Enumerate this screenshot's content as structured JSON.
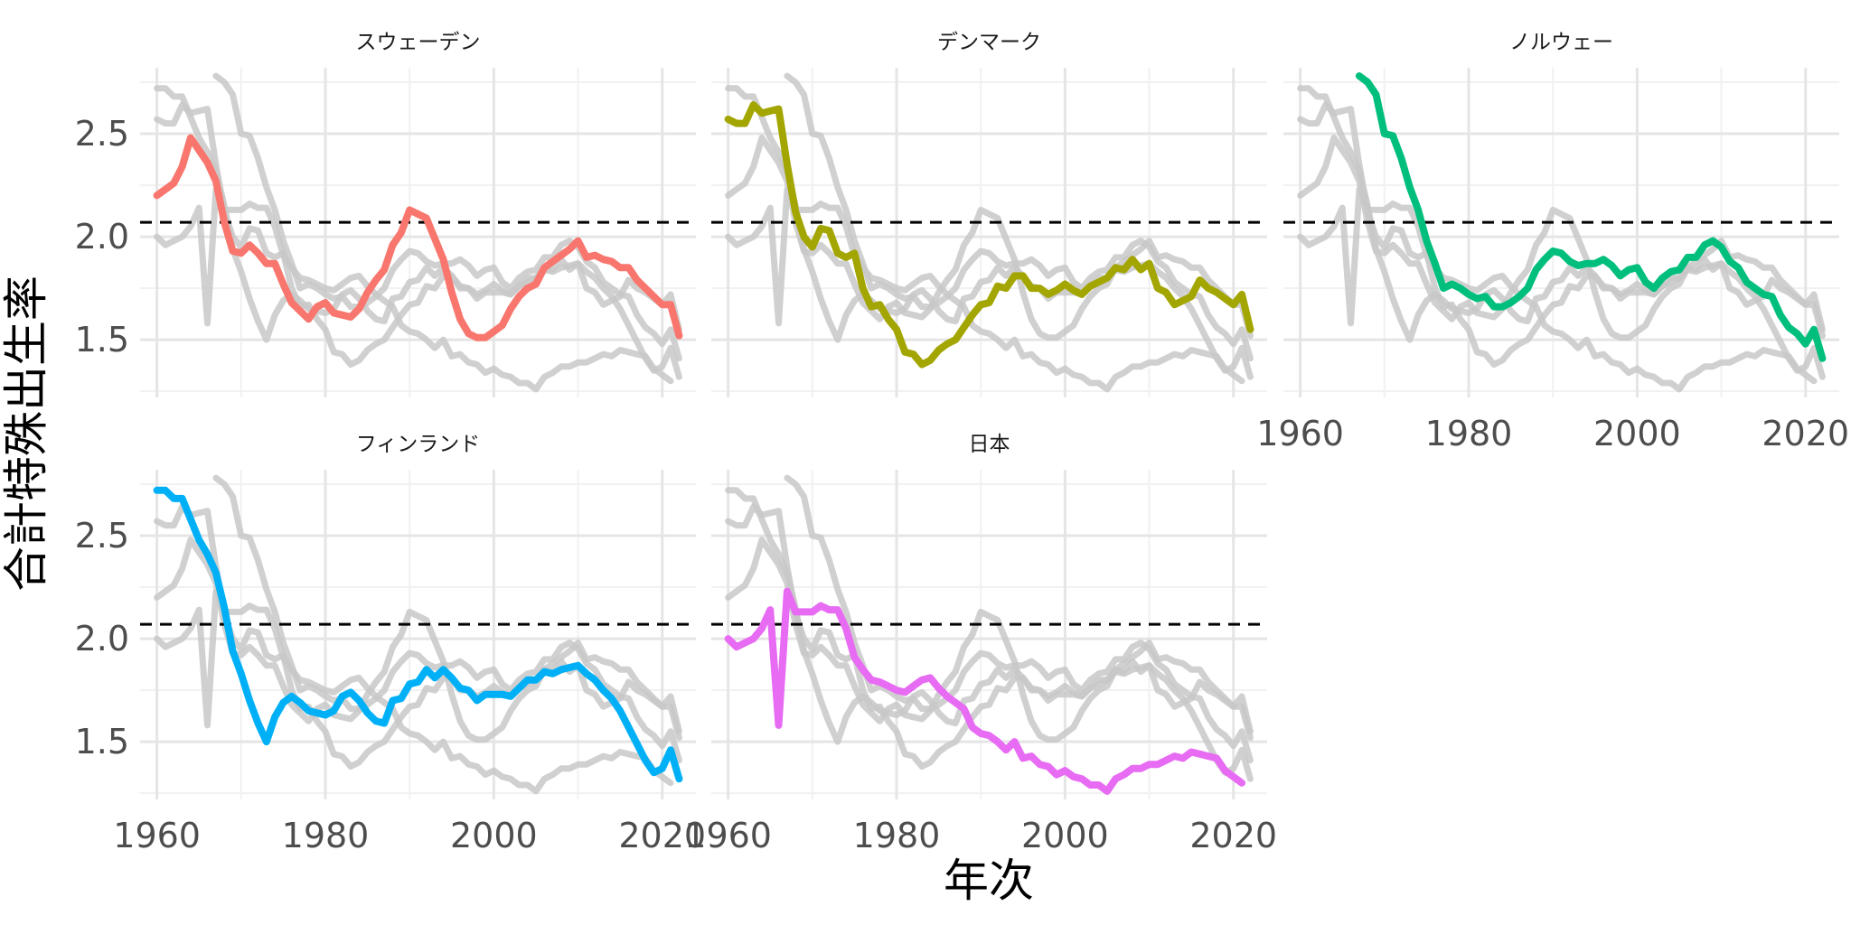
{
  "chart_data": {
    "type": "line",
    "layout": "faceted small multiples (2 rows x 3 columns, 5 panels)",
    "xlabel": "年次",
    "ylabel": "合計特殊出生率",
    "xlim": [
      1958,
      2024
    ],
    "ylim": [
      1.22,
      2.82
    ],
    "x_ticks": [
      1960,
      1980,
      2000,
      2020
    ],
    "y_ticks": [
      1.5,
      2.0,
      2.5
    ],
    "y_tick_labels": [
      "1.5",
      "2.0",
      "2.5"
    ],
    "reference_line": {
      "y": 2.07,
      "style": "dashed",
      "color": "#000000"
    },
    "background_series_color": "#c8c8c8",
    "grid": true,
    "legend": "none",
    "panels": [
      {
        "title": "スウェーデン",
        "highlight_color": "#F8766D",
        "x": [
          1960,
          1961,
          1962,
          1963,
          1964,
          1965,
          1966,
          1967,
          1968,
          1969,
          1970,
          1971,
          1972,
          1973,
          1974,
          1975,
          1976,
          1977,
          1978,
          1979,
          1980,
          1981,
          1982,
          1983,
          1984,
          1985,
          1986,
          1987,
          1988,
          1989,
          1990,
          1991,
          1992,
          1993,
          1994,
          1995,
          1996,
          1997,
          1998,
          1999,
          2000,
          2001,
          2002,
          2003,
          2004,
          2005,
          2006,
          2007,
          2008,
          2009,
          2010,
          2011,
          2012,
          2013,
          2014,
          2015,
          2016,
          2017,
          2018,
          2019,
          2020,
          2021,
          2022
        ],
        "y": [
          2.2,
          2.23,
          2.26,
          2.34,
          2.48,
          2.42,
          2.36,
          2.27,
          2.07,
          1.93,
          1.92,
          1.96,
          1.92,
          1.87,
          1.87,
          1.77,
          1.68,
          1.64,
          1.6,
          1.66,
          1.68,
          1.63,
          1.62,
          1.61,
          1.65,
          1.73,
          1.79,
          1.84,
          1.96,
          2.02,
          2.13,
          2.11,
          2.09,
          1.99,
          1.89,
          1.73,
          1.6,
          1.53,
          1.51,
          1.51,
          1.54,
          1.57,
          1.65,
          1.71,
          1.75,
          1.77,
          1.85,
          1.88,
          1.91,
          1.94,
          1.98,
          1.9,
          1.91,
          1.89,
          1.88,
          1.85,
          1.85,
          1.79,
          1.75,
          1.71,
          1.67,
          1.67,
          1.52
        ]
      },
      {
        "title": "デンマーク",
        "highlight_color": "#A3A500",
        "x": [
          1960,
          1961,
          1962,
          1963,
          1964,
          1965,
          1966,
          1967,
          1968,
          1969,
          1970,
          1971,
          1972,
          1973,
          1974,
          1975,
          1976,
          1977,
          1978,
          1979,
          1980,
          1981,
          1982,
          1983,
          1984,
          1985,
          1986,
          1987,
          1988,
          1989,
          1990,
          1991,
          1992,
          1993,
          1994,
          1995,
          1996,
          1997,
          1998,
          1999,
          2000,
          2001,
          2002,
          2003,
          2004,
          2005,
          2006,
          2007,
          2008,
          2009,
          2010,
          2011,
          2012,
          2013,
          2014,
          2015,
          2016,
          2017,
          2018,
          2019,
          2020,
          2021,
          2022
        ],
        "y": [
          2.57,
          2.55,
          2.55,
          2.64,
          2.6,
          2.61,
          2.62,
          2.35,
          2.12,
          2.0,
          1.95,
          2.04,
          2.03,
          1.92,
          1.9,
          1.92,
          1.75,
          1.66,
          1.67,
          1.6,
          1.55,
          1.44,
          1.43,
          1.38,
          1.4,
          1.45,
          1.48,
          1.5,
          1.56,
          1.62,
          1.67,
          1.68,
          1.76,
          1.75,
          1.81,
          1.81,
          1.75,
          1.75,
          1.72,
          1.74,
          1.77,
          1.74,
          1.72,
          1.76,
          1.78,
          1.8,
          1.85,
          1.84,
          1.89,
          1.84,
          1.87,
          1.75,
          1.73,
          1.67,
          1.69,
          1.71,
          1.79,
          1.75,
          1.73,
          1.7,
          1.67,
          1.72,
          1.55
        ]
      },
      {
        "title": "ノルウェー",
        "highlight_color": "#00BF7D",
        "x": [
          1967,
          1968,
          1969,
          1970,
          1971,
          1972,
          1973,
          1974,
          1975,
          1976,
          1977,
          1978,
          1979,
          1980,
          1981,
          1982,
          1983,
          1984,
          1985,
          1986,
          1987,
          1988,
          1989,
          1990,
          1991,
          1992,
          1993,
          1994,
          1995,
          1996,
          1997,
          1998,
          1999,
          2000,
          2001,
          2002,
          2003,
          2004,
          2005,
          2006,
          2007,
          2008,
          2009,
          2010,
          2011,
          2012,
          2013,
          2014,
          2015,
          2016,
          2017,
          2018,
          2019,
          2020,
          2021,
          2022
        ],
        "y": [
          2.78,
          2.75,
          2.69,
          2.5,
          2.49,
          2.38,
          2.24,
          2.13,
          1.98,
          1.87,
          1.75,
          1.77,
          1.75,
          1.72,
          1.7,
          1.71,
          1.66,
          1.66,
          1.68,
          1.71,
          1.75,
          1.84,
          1.89,
          1.93,
          1.92,
          1.88,
          1.86,
          1.87,
          1.87,
          1.89,
          1.86,
          1.81,
          1.84,
          1.85,
          1.78,
          1.75,
          1.8,
          1.83,
          1.84,
          1.9,
          1.9,
          1.96,
          1.98,
          1.95,
          1.88,
          1.85,
          1.78,
          1.75,
          1.72,
          1.71,
          1.62,
          1.56,
          1.53,
          1.48,
          1.55,
          1.41
        ]
      },
      {
        "title": "フィンランド",
        "highlight_color": "#00B0F6",
        "x": [
          1960,
          1961,
          1962,
          1963,
          1964,
          1965,
          1966,
          1967,
          1968,
          1969,
          1970,
          1971,
          1972,
          1973,
          1974,
          1975,
          1976,
          1977,
          1978,
          1979,
          1980,
          1981,
          1982,
          1983,
          1984,
          1985,
          1986,
          1987,
          1988,
          1989,
          1990,
          1991,
          1992,
          1993,
          1994,
          1995,
          1996,
          1997,
          1998,
          1999,
          2000,
          2001,
          2002,
          2003,
          2004,
          2005,
          2006,
          2007,
          2008,
          2009,
          2010,
          2011,
          2012,
          2013,
          2014,
          2015,
          2016,
          2017,
          2018,
          2019,
          2020,
          2021,
          2022
        ],
        "y": [
          2.72,
          2.72,
          2.68,
          2.68,
          2.58,
          2.48,
          2.41,
          2.32,
          2.15,
          1.94,
          1.83,
          1.7,
          1.59,
          1.5,
          1.62,
          1.69,
          1.72,
          1.69,
          1.65,
          1.64,
          1.63,
          1.65,
          1.72,
          1.74,
          1.7,
          1.64,
          1.6,
          1.59,
          1.7,
          1.71,
          1.78,
          1.79,
          1.85,
          1.81,
          1.85,
          1.81,
          1.76,
          1.75,
          1.7,
          1.73,
          1.73,
          1.73,
          1.72,
          1.76,
          1.8,
          1.8,
          1.84,
          1.83,
          1.85,
          1.86,
          1.87,
          1.83,
          1.8,
          1.75,
          1.71,
          1.65,
          1.57,
          1.49,
          1.41,
          1.35,
          1.37,
          1.46,
          1.32
        ]
      },
      {
        "title": "日本",
        "highlight_color": "#E76BF3",
        "x": [
          1960,
          1961,
          1962,
          1963,
          1964,
          1965,
          1966,
          1967,
          1968,
          1969,
          1970,
          1971,
          1972,
          1973,
          1974,
          1975,
          1976,
          1977,
          1978,
          1979,
          1980,
          1981,
          1982,
          1983,
          1984,
          1985,
          1986,
          1987,
          1988,
          1989,
          1990,
          1991,
          1992,
          1993,
          1994,
          1995,
          1996,
          1997,
          1998,
          1999,
          2000,
          2001,
          2002,
          2003,
          2004,
          2005,
          2006,
          2007,
          2008,
          2009,
          2010,
          2011,
          2012,
          2013,
          2014,
          2015,
          2016,
          2017,
          2018,
          2019,
          2020,
          2021
        ],
        "y": [
          2.0,
          1.96,
          1.98,
          2.0,
          2.05,
          2.14,
          1.58,
          2.23,
          2.13,
          2.13,
          2.13,
          2.16,
          2.14,
          2.14,
          2.05,
          1.91,
          1.85,
          1.8,
          1.79,
          1.77,
          1.75,
          1.74,
          1.77,
          1.8,
          1.81,
          1.76,
          1.72,
          1.69,
          1.66,
          1.57,
          1.54,
          1.53,
          1.5,
          1.46,
          1.5,
          1.42,
          1.43,
          1.39,
          1.38,
          1.34,
          1.36,
          1.33,
          1.32,
          1.29,
          1.29,
          1.26,
          1.32,
          1.34,
          1.37,
          1.37,
          1.39,
          1.39,
          1.41,
          1.43,
          1.42,
          1.45,
          1.44,
          1.43,
          1.42,
          1.36,
          1.33,
          1.3
        ]
      }
    ]
  }
}
